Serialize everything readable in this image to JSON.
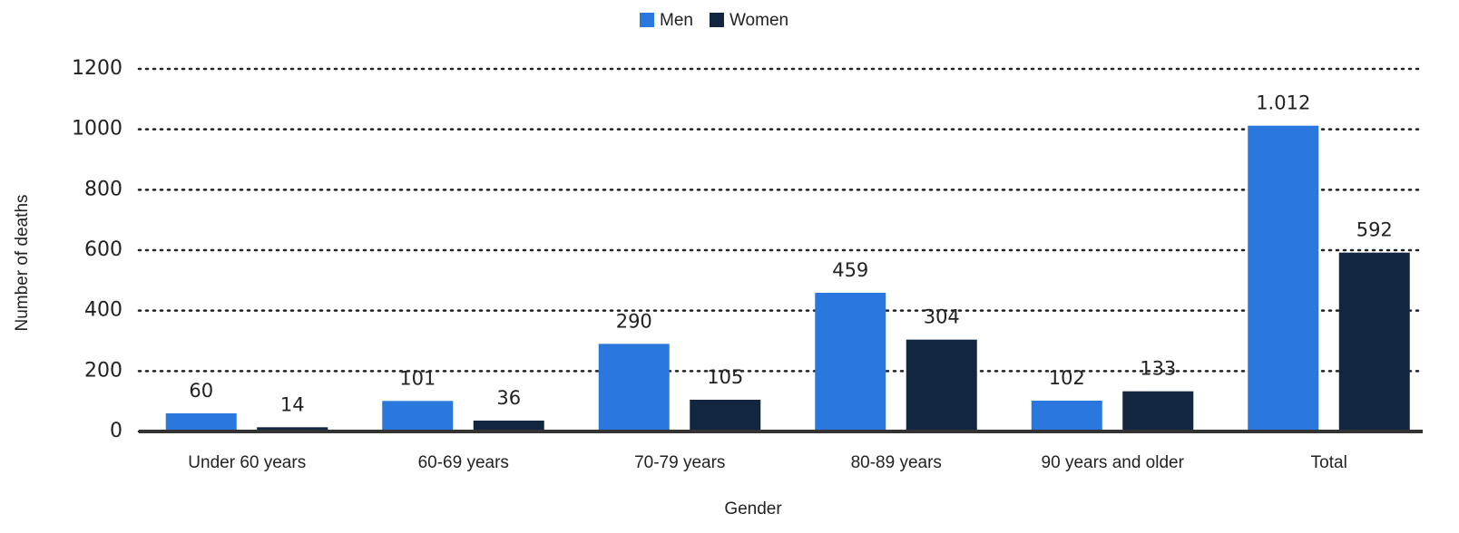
{
  "chart_data": {
    "type": "bar",
    "categories": [
      "Under 60 years",
      "60-69 years",
      "70-79 years",
      "80-89 years",
      "90 years and older",
      "Total"
    ],
    "series": [
      {
        "name": "Men",
        "color": "#2a78de",
        "values": [
          60,
          101,
          290,
          459,
          102,
          1012
        ],
        "value_labels": [
          "60",
          "101",
          "290",
          "459",
          "102",
          "1.012"
        ]
      },
      {
        "name": "Women",
        "color": "#12263f",
        "values": [
          14,
          36,
          105,
          304,
          133,
          592
        ]
      }
    ],
    "y_label": "Number of deaths",
    "x_label": "Gender",
    "ylim": [
      0,
      1200
    ],
    "yticks": [
      0,
      200,
      400,
      600,
      800,
      1000,
      1200
    ],
    "grid": true,
    "legend": "top"
  }
}
